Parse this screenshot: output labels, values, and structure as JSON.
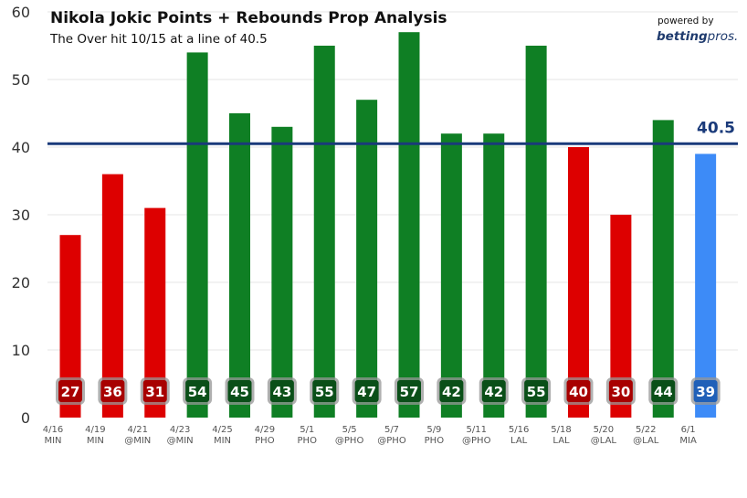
{
  "chart_data": {
    "type": "bar",
    "title": "Nikola Jokic Points + Rebounds Prop Analysis",
    "subtitle": "The Over hit 10/15 at a line of 40.5",
    "powered_by": "powered by",
    "brand": {
      "part1": "betting",
      "part2": "pros."
    },
    "ylim": [
      0,
      60
    ],
    "yticks": [
      0,
      10,
      20,
      30,
      40,
      50,
      60
    ],
    "grid": true,
    "line": {
      "value": 40.5,
      "label": "40.5",
      "color": "#1a3a7a"
    },
    "colors": {
      "over": "#0f7f24",
      "under": "#dd0000",
      "upcoming": "#3d8bf7"
    },
    "categories": [
      {
        "date": "4/16",
        "opp": "MIN"
      },
      {
        "date": "4/19",
        "opp": "MIN"
      },
      {
        "date": "4/21",
        "opp": "@MIN"
      },
      {
        "date": "4/23",
        "opp": "@MIN"
      },
      {
        "date": "4/25",
        "opp": "MIN"
      },
      {
        "date": "4/29",
        "opp": "PHO"
      },
      {
        "date": "5/1",
        "opp": "PHO"
      },
      {
        "date": "5/5",
        "opp": "@PHO"
      },
      {
        "date": "5/7",
        "opp": "@PHO"
      },
      {
        "date": "5/9",
        "opp": "PHO"
      },
      {
        "date": "5/11",
        "opp": "@PHO"
      },
      {
        "date": "5/16",
        "opp": "LAL"
      },
      {
        "date": "5/18",
        "opp": "LAL"
      },
      {
        "date": "5/20",
        "opp": "@LAL"
      },
      {
        "date": "5/22",
        "opp": "@LAL"
      },
      {
        "date": "6/1",
        "opp": "MIA"
      }
    ],
    "values": [
      27,
      36,
      31,
      54,
      45,
      43,
      55,
      47,
      57,
      42,
      42,
      55,
      40,
      30,
      44,
      39
    ],
    "labels": [
      "27",
      "36",
      "31",
      "54",
      "45",
      "43",
      "55",
      "47",
      "57",
      "42",
      "42",
      "55",
      "40",
      "30",
      "44",
      "39"
    ],
    "status": [
      "under",
      "under",
      "under",
      "over",
      "over",
      "over",
      "over",
      "over",
      "over",
      "over",
      "over",
      "over",
      "under",
      "under",
      "over",
      "upcoming"
    ]
  }
}
